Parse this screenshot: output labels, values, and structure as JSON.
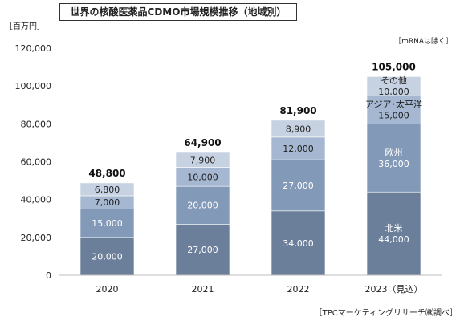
{
  "header": {
    "title": "世界の核酸医薬品CDMO市場規模推移（地域別）",
    "unit": "［百万円］",
    "note": "［mRNAは除く］",
    "source": "［TPCマーケティングリサーチ㈱調べ］"
  },
  "chart_data": {
    "type": "bar",
    "stacked": true,
    "categories": [
      "2020",
      "2021",
      "2022",
      "2023（見込）"
    ],
    "series": [
      {
        "name": "北米",
        "values": [
          20000,
          27000,
          34000,
          44000
        ],
        "color": "#6b7f9b",
        "text_color": "#ffffff"
      },
      {
        "name": "欧州",
        "values": [
          15000,
          20000,
          27000,
          36000
        ],
        "color": "#8399b8",
        "text_color": "#ffffff"
      },
      {
        "name": "アジア･太平洋",
        "values": [
          7000,
          10000,
          12000,
          15000
        ],
        "color": "#a6b8d1",
        "text_color": "#1f1f1f"
      },
      {
        "name": "その他",
        "values": [
          6800,
          7900,
          8900,
          10000
        ],
        "color": "#c6d2e2",
        "text_color": "#1f1f1f"
      }
    ],
    "segment_labels": [
      [
        "20,000",
        "27,000",
        "34,000",
        "北米\n44,000"
      ],
      [
        "15,000",
        "20,000",
        "27,000",
        "欧州\n36,000"
      ],
      [
        "7,000",
        "10,000",
        "12,000",
        "アジア･太平洋\n15,000"
      ],
      [
        "6,800",
        "7,900",
        "8,900",
        "その他\n10,000"
      ]
    ],
    "totals": [
      48800,
      64900,
      81900,
      105000
    ],
    "total_labels": [
      "48,800",
      "64,900",
      "81,900",
      "105,000"
    ],
    "ylim": [
      0,
      120000
    ],
    "yticks": [
      0,
      20000,
      40000,
      60000,
      80000,
      100000,
      120000
    ],
    "ytick_labels": [
      "0",
      "20,000",
      "40,000",
      "60,000",
      "80,000",
      "100,000",
      "120,000"
    ],
    "grid": false,
    "legend": "none"
  }
}
